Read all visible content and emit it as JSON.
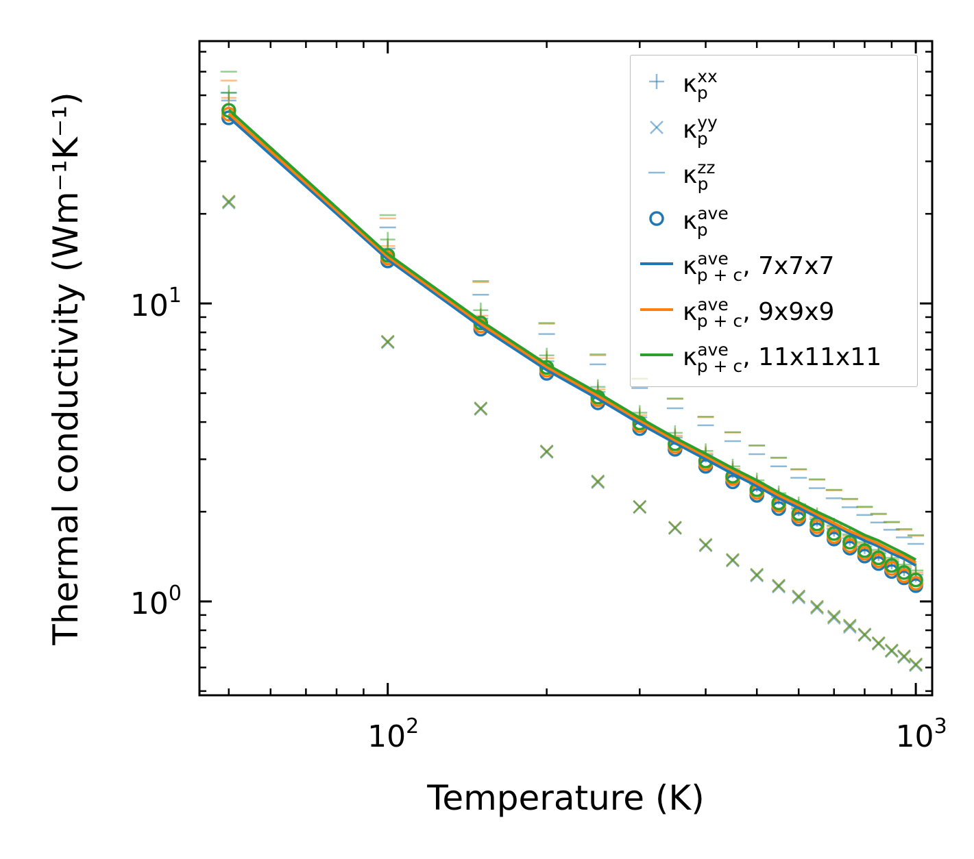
{
  "chart_data": {
    "type": "line",
    "xlabel": "Temperature (K)",
    "ylabel": "Thermal conductivity (Wm⁻¹K⁻¹)",
    "xscale": "log",
    "yscale": "log",
    "xlim": [
      44,
      1074
    ],
    "ylim": [
      0.484,
      76
    ],
    "x_ticks": [
      {
        "value": 100,
        "base": "10",
        "exp": "2"
      },
      {
        "value": 1000,
        "base": "10",
        "exp": "3"
      }
    ],
    "y_ticks": [
      {
        "value": 1,
        "base": "10",
        "exp": "0"
      },
      {
        "value": 10,
        "base": "10",
        "exp": "1"
      }
    ],
    "legend_placement": "top-right",
    "colors": {
      "7x7x7": "#1f77b4",
      "9x9x9": "#ff7f0e",
      "11x11x11": "#2ca02c"
    },
    "x": [
      50,
      100,
      150,
      200,
      250,
      300,
      350,
      400,
      450,
      500,
      550,
      600,
      650,
      700,
      750,
      800,
      850,
      900,
      950,
      1000
    ],
    "meshes": [
      {
        "name": "7x7x7",
        "color": "#1f77b4",
        "xx": [
          48,
          15.3,
          8.9,
          6.4,
          5.05,
          4.15,
          3.55,
          3.1,
          2.75,
          2.47,
          2.24,
          2.05,
          1.89,
          1.75,
          1.63,
          1.53,
          1.45,
          1.36,
          1.29,
          1.23
        ],
        "yy": [
          21.8,
          7.4,
          4.42,
          3.17,
          2.51,
          2.07,
          1.76,
          1.54,
          1.37,
          1.22,
          1.12,
          1.03,
          0.95,
          0.88,
          0.82,
          0.77,
          0.72,
          0.68,
          0.65,
          0.61
        ],
        "zz": [
          51,
          18.0,
          10.7,
          7.9,
          6.25,
          5.2,
          4.45,
          3.9,
          3.45,
          3.12,
          2.84,
          2.6,
          2.4,
          2.22,
          2.07,
          1.95,
          1.84,
          1.74,
          1.64,
          1.56
        ],
        "ave": [
          42,
          13.9,
          8.2,
          5.83,
          4.64,
          3.8,
          3.24,
          2.84,
          2.52,
          2.27,
          2.05,
          1.89,
          1.74,
          1.62,
          1.51,
          1.42,
          1.34,
          1.26,
          1.2,
          1.13
        ],
        "pc": [
          42.2,
          14.05,
          8.35,
          5.98,
          4.79,
          3.95,
          3.4,
          3.0,
          2.68,
          2.44,
          2.22,
          2.06,
          1.92,
          1.8,
          1.69,
          1.6,
          1.53,
          1.45,
          1.39,
          1.32
        ]
      },
      {
        "name": "9x9x9",
        "color": "#ff7f0e",
        "xx": [
          49,
          15.6,
          9.1,
          6.55,
          5.15,
          4.22,
          3.6,
          3.14,
          2.79,
          2.5,
          2.27,
          2.08,
          1.92,
          1.78,
          1.66,
          1.56,
          1.47,
          1.38,
          1.31,
          1.25
        ],
        "yy": [
          22.0,
          7.45,
          4.45,
          3.19,
          2.53,
          2.08,
          1.77,
          1.55,
          1.38,
          1.23,
          1.13,
          1.04,
          0.96,
          0.89,
          0.83,
          0.775,
          0.725,
          0.685,
          0.655,
          0.615
        ],
        "zz": [
          56,
          19.3,
          11.8,
          8.55,
          6.7,
          5.58,
          4.78,
          4.15,
          3.69,
          3.33,
          3.03,
          2.77,
          2.56,
          2.36,
          2.2,
          2.07,
          1.96,
          1.84,
          1.74,
          1.66
        ],
        "ave": [
          43.2,
          14.2,
          8.4,
          5.97,
          4.75,
          3.89,
          3.31,
          2.9,
          2.58,
          2.32,
          2.1,
          1.93,
          1.78,
          1.65,
          1.54,
          1.45,
          1.37,
          1.29,
          1.22,
          1.15
        ],
        "pc": [
          43.4,
          14.36,
          8.55,
          6.12,
          4.9,
          4.05,
          3.47,
          3.07,
          2.75,
          2.49,
          2.27,
          2.11,
          1.96,
          1.83,
          1.72,
          1.64,
          1.56,
          1.48,
          1.42,
          1.35
        ]
      },
      {
        "name": "11x11x11",
        "color": "#2ca02c",
        "xx": [
          51,
          16.4,
          9.5,
          6.7,
          5.25,
          4.3,
          3.68,
          3.2,
          2.84,
          2.55,
          2.31,
          2.12,
          1.95,
          1.8,
          1.68,
          1.58,
          1.49,
          1.4,
          1.33,
          1.27
        ],
        "yy": [
          22.0,
          7.45,
          4.45,
          3.19,
          2.53,
          2.08,
          1.77,
          1.55,
          1.38,
          1.23,
          1.13,
          1.04,
          0.96,
          0.89,
          0.83,
          0.775,
          0.725,
          0.685,
          0.655,
          0.615
        ],
        "zz": [
          60,
          19.8,
          11.9,
          8.6,
          6.75,
          5.6,
          4.8,
          4.17,
          3.7,
          3.34,
          3.04,
          2.78,
          2.57,
          2.37,
          2.21,
          2.08,
          1.97,
          1.85,
          1.75,
          1.67
        ],
        "ave": [
          44.5,
          14.5,
          8.6,
          6.1,
          4.85,
          3.97,
          3.38,
          2.96,
          2.63,
          2.37,
          2.14,
          1.97,
          1.82,
          1.69,
          1.58,
          1.48,
          1.4,
          1.32,
          1.25,
          1.18
        ],
        "pc": [
          44.7,
          14.66,
          8.75,
          6.25,
          5.01,
          4.13,
          3.54,
          3.13,
          2.8,
          2.55,
          2.32,
          2.15,
          2.0,
          1.88,
          1.77,
          1.67,
          1.6,
          1.52,
          1.45,
          1.38
        ]
      }
    ],
    "legend": [
      {
        "marker": "plus",
        "color": "#1f77b4",
        "sym": "κ",
        "sup": "xx",
        "sub": "p",
        "suffix": ""
      },
      {
        "marker": "x",
        "color": "#1f77b4",
        "sym": "κ",
        "sup": "yy",
        "sub": "p",
        "suffix": ""
      },
      {
        "marker": "dash",
        "color": "#1f77b4",
        "sym": "κ",
        "sup": "zz",
        "sub": "p",
        "suffix": ""
      },
      {
        "marker": "circle",
        "color": "#1f77b4",
        "sym": "κ",
        "sup": "ave",
        "sub": "p",
        "suffix": ""
      },
      {
        "marker": "line",
        "color": "#1f77b4",
        "sym": "κ",
        "sup": "ave",
        "sub": "p + c",
        "suffix": ", 7x7x7"
      },
      {
        "marker": "line",
        "color": "#ff7f0e",
        "sym": "κ",
        "sup": "ave",
        "sub": "p + c",
        "suffix": ", 9x9x9"
      },
      {
        "marker": "line",
        "color": "#2ca02c",
        "sym": "κ",
        "sup": "ave",
        "sub": "p + c",
        "suffix": ", 11x11x11"
      }
    ]
  }
}
